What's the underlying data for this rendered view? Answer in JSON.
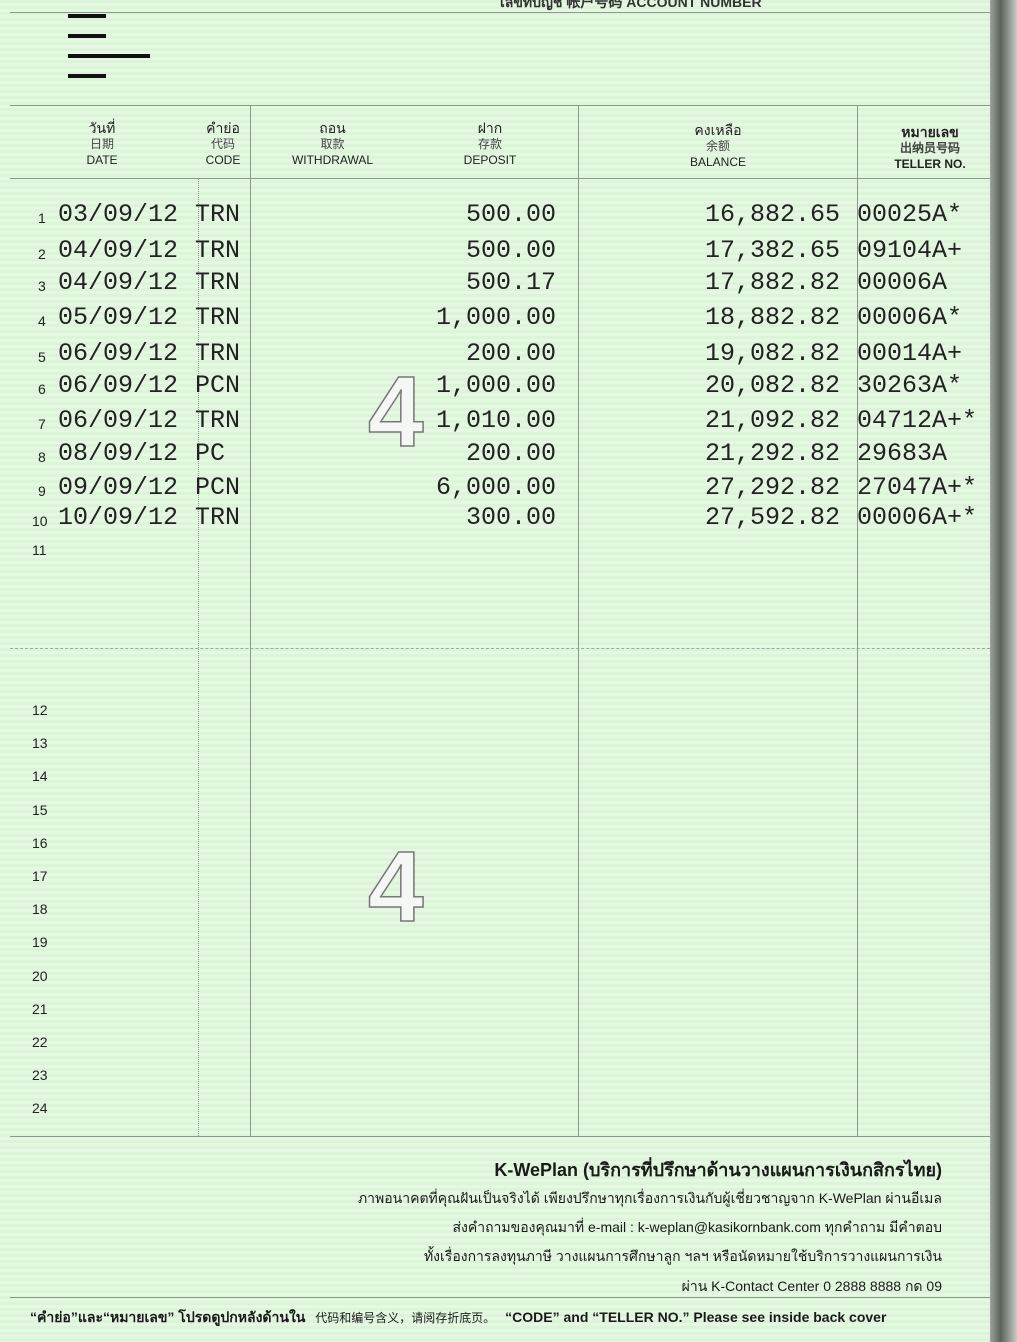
{
  "header": {
    "account_number_label": "เลขที่บัญชี 帐户号码 ACCOUNT NUMBER"
  },
  "columns": [
    {
      "th": "วันที่",
      "zh": "日期",
      "en": "DATE"
    },
    {
      "th": "คำย่อ",
      "zh": "代码",
      "en": "CODE"
    },
    {
      "th": "ถอน",
      "zh": "取款",
      "en": "WITHDRAWAL"
    },
    {
      "th": "ฝาก",
      "zh": "存款",
      "en": "DEPOSIT"
    },
    {
      "th": "คงเหลือ",
      "zh": "余额",
      "en": "BALANCE"
    },
    {
      "th": "หมายเลข",
      "zh": "出纳员号码",
      "en": "TELLER NO."
    }
  ],
  "page_number": "4",
  "rows": [
    {
      "no": "1",
      "date": "03/09/12",
      "code": "TRN",
      "withdrawal": "",
      "deposit": "500.00",
      "balance": "16,882.65",
      "teller": "00025A*"
    },
    {
      "no": "2",
      "date": "04/09/12",
      "code": "TRN",
      "withdrawal": "",
      "deposit": "500.00",
      "balance": "17,382.65",
      "teller": "09104A+"
    },
    {
      "no": "3",
      "date": "04/09/12",
      "code": "TRN",
      "withdrawal": "",
      "deposit": "500.17",
      "balance": "17,882.82",
      "teller": "00006A"
    },
    {
      "no": "4",
      "date": "05/09/12",
      "code": "TRN",
      "withdrawal": "",
      "deposit": "1,000.00",
      "balance": "18,882.82",
      "teller": "00006A*"
    },
    {
      "no": "5",
      "date": "06/09/12",
      "code": "TRN",
      "withdrawal": "",
      "deposit": "200.00",
      "balance": "19,082.82",
      "teller": "00014A+"
    },
    {
      "no": "6",
      "date": "06/09/12",
      "code": "PCN",
      "withdrawal": "",
      "deposit": "1,000.00",
      "balance": "20,082.82",
      "teller": "30263A*"
    },
    {
      "no": "7",
      "date": "06/09/12",
      "code": "TRN",
      "withdrawal": "",
      "deposit": "1,010.00",
      "balance": "21,092.82",
      "teller": "04712A+*"
    },
    {
      "no": "8",
      "date": "08/09/12",
      "code": "PC",
      "withdrawal": "",
      "deposit": "200.00",
      "balance": "21,292.82",
      "teller": "29683A"
    },
    {
      "no": "9",
      "date": "09/09/12",
      "code": "PCN",
      "withdrawal": "",
      "deposit": "6,000.00",
      "balance": "27,292.82",
      "teller": "27047A+*"
    },
    {
      "no": "10",
      "date": "10/09/12",
      "code": "TRN",
      "withdrawal": "",
      "deposit": "300.00",
      "balance": "27,592.82",
      "teller": "00006A+*"
    }
  ],
  "empty_rows": [
    "11",
    "12",
    "13",
    "14",
    "15",
    "16",
    "17",
    "18",
    "19",
    "20",
    "21",
    "22",
    "23",
    "24"
  ],
  "footer": {
    "title": "K-WePlan (บริการที่ปรึกษาด้านวางแผนการเงินกสิกรไทย)",
    "lines": [
      "ภาพอนาคตที่คุณฝันเป็นจริงได้ เพียงปรึกษาทุกเรื่องการเงินกับผู้เชี่ยวชาญจาก K-WePlan ผ่านอีเมล",
      "ส่งคำถามของคุณมาที่ e-mail : k-weplan@kasikornbank.com ทุกคำถาม มีคำตอบ",
      "ทั้งเรื่องการลงทุนภาษี วางแผนการศึกษาลูก ฯลฯ หรือนัดหมายใช้บริการวางแผนการเงิน",
      "ผ่าน K-Contact Center 0 2888 8888 กด 09"
    ],
    "note_th": "“คำย่อ”และ“หมายเลข” โปรดดูปกหลังด้านใน",
    "note_zh": "代码和编号含义，请阅存折底页。",
    "note_en": "“CODE” and “TELLER NO.” Please see inside back cover"
  },
  "colors": {
    "paper": "#dcf5d9",
    "ink": "#222222"
  }
}
